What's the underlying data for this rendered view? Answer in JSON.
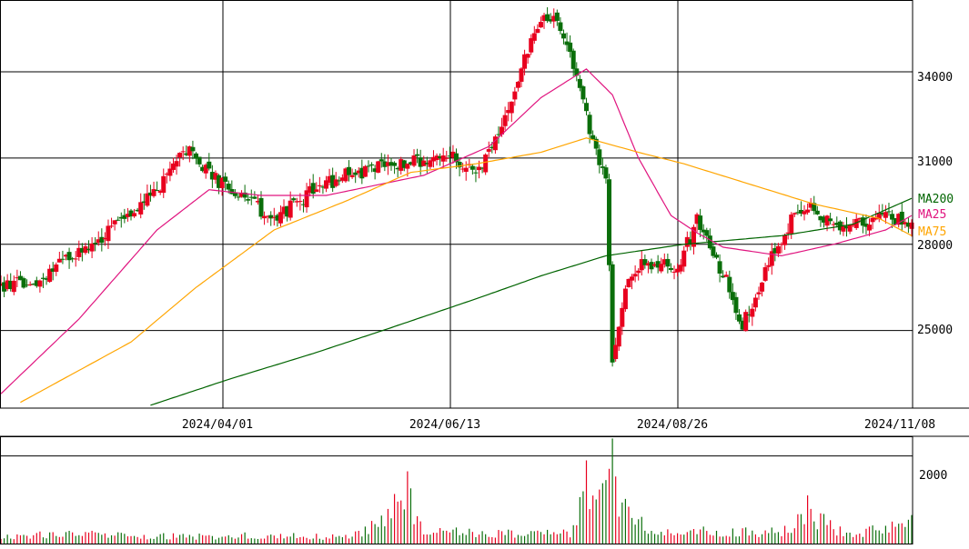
{
  "chart_data": [
    {
      "type": "candlestick",
      "title": "",
      "x_ticks": [
        "2024/04/01",
        "2024/06/13",
        "2024/08/26",
        "2024/11/08"
      ],
      "y_ticks": [
        "25000",
        "28000",
        "31000",
        "34000"
      ],
      "ylim": [
        22300,
        36500
      ],
      "grid": true,
      "legend": {
        "position": "right",
        "entries": [
          {
            "name": "MA200",
            "color": "#006400"
          },
          {
            "name": "MA25",
            "color": "#e0147f"
          },
          {
            "name": "MA75",
            "color": "#ffa500"
          }
        ]
      },
      "colors": {
        "up": "#e8001e",
        "down": "#0a6e0a"
      },
      "approx_series": {
        "close_points": [
          [
            0,
            26500
          ],
          [
            10,
            26700
          ],
          [
            20,
            27400
          ],
          [
            30,
            28200
          ],
          [
            42,
            29200
          ],
          [
            48,
            29900
          ],
          [
            58,
            31400
          ],
          [
            64,
            30400
          ],
          [
            72,
            29800
          ],
          [
            80,
            29200
          ],
          [
            86,
            29000
          ],
          [
            96,
            29900
          ],
          [
            106,
            30400
          ],
          [
            118,
            30700
          ],
          [
            125,
            30800
          ],
          [
            138,
            31100
          ],
          [
            146,
            30500
          ],
          [
            154,
            31900
          ],
          [
            160,
            34100
          ],
          [
            165,
            35500
          ],
          [
            170,
            36100
          ],
          [
            176,
            34300
          ],
          [
            182,
            31500
          ],
          [
            186,
            30500
          ],
          [
            188,
            24000
          ],
          [
            192,
            26500
          ],
          [
            198,
            27400
          ],
          [
            208,
            27200
          ],
          [
            214,
            28800
          ],
          [
            222,
            27000
          ],
          [
            228,
            25200
          ],
          [
            236,
            27300
          ],
          [
            244,
            29100
          ],
          [
            250,
            29300
          ],
          [
            256,
            28600
          ],
          [
            264,
            28800
          ],
          [
            272,
            28900
          ],
          [
            280,
            28800
          ]
        ],
        "ma25_points": [
          [
            0,
            22800
          ],
          [
            24,
            25400
          ],
          [
            48,
            28500
          ],
          [
            64,
            29900
          ],
          [
            80,
            29700
          ],
          [
            100,
            29700
          ],
          [
            130,
            30400
          ],
          [
            150,
            31400
          ],
          [
            166,
            33100
          ],
          [
            180,
            34100
          ],
          [
            188,
            33200
          ],
          [
            196,
            31000
          ],
          [
            206,
            29000
          ],
          [
            214,
            28400
          ],
          [
            222,
            27900
          ],
          [
            240,
            27600
          ],
          [
            256,
            28000
          ],
          [
            272,
            28500
          ],
          [
            280,
            29000
          ]
        ],
        "ma75_points": [
          [
            6,
            22500
          ],
          [
            40,
            24600
          ],
          [
            60,
            26500
          ],
          [
            84,
            28500
          ],
          [
            106,
            29500
          ],
          [
            126,
            30500
          ],
          [
            146,
            30800
          ],
          [
            166,
            31200
          ],
          [
            180,
            31700
          ],
          [
            196,
            31200
          ],
          [
            210,
            30800
          ],
          [
            230,
            30100
          ],
          [
            250,
            29400
          ],
          [
            270,
            28900
          ],
          [
            280,
            28300
          ]
        ],
        "ma200_points": [
          [
            46,
            22400
          ],
          [
            70,
            23300
          ],
          [
            96,
            24200
          ],
          [
            120,
            25100
          ],
          [
            146,
            26100
          ],
          [
            166,
            26900
          ],
          [
            186,
            27600
          ],
          [
            210,
            28000
          ],
          [
            240,
            28300
          ],
          [
            262,
            28700
          ],
          [
            280,
            29600
          ]
        ]
      }
    },
    {
      "type": "bar",
      "title": "",
      "y_ticks": [
        "2000"
      ],
      "ylim": [
        0,
        2450
      ],
      "approx_series": {
        "volume_points": [
          [
            0,
            230
          ],
          [
            20,
            360
          ],
          [
            40,
            280
          ],
          [
            60,
            250
          ],
          [
            80,
            290
          ],
          [
            100,
            240
          ],
          [
            110,
            350
          ],
          [
            125,
            1650
          ],
          [
            130,
            420
          ],
          [
            150,
            390
          ],
          [
            160,
            360
          ],
          [
            175,
            380
          ],
          [
            180,
            1900
          ],
          [
            186,
            1450
          ],
          [
            188,
            2400
          ],
          [
            192,
            1020
          ],
          [
            200,
            520
          ],
          [
            220,
            420
          ],
          [
            240,
            410
          ],
          [
            248,
            1100
          ],
          [
            260,
            330
          ],
          [
            280,
            650
          ]
        ]
      }
    }
  ]
}
